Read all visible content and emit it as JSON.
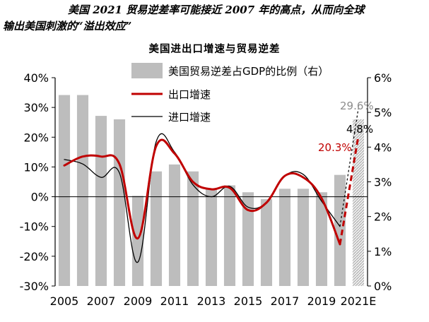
{
  "caption": {
    "line1": "美国 2021 贸易逆差率可能接近 2007 年的高点，从而向全球",
    "line2": "输出美国刺激的“溢出效应”"
  },
  "chart_data": {
    "type": "bar+line",
    "title": "美国进出口增速与贸易逆差",
    "categories": [
      "2005",
      "2006",
      "2007",
      "2008",
      "2009",
      "2010",
      "2011",
      "2012",
      "2013",
      "2014",
      "2015",
      "2016",
      "2017",
      "2018",
      "2019",
      "2020",
      "2021E"
    ],
    "x_tick_labels": [
      "2005",
      "2007",
      "2009",
      "2011",
      "2013",
      "2015",
      "2017",
      "2019",
      "2021E"
    ],
    "y_left": {
      "min": -30,
      "max": 40,
      "step": 10,
      "tick_labels": [
        "-30%",
        "-20%",
        "-10%",
        "0%",
        "10%",
        "20%",
        "30%",
        "40%"
      ]
    },
    "y_right": {
      "min": 0,
      "max": 6,
      "step": 1,
      "tick_labels": [
        "0%",
        "1%",
        "2%",
        "3%",
        "4%",
        "5%",
        "6%"
      ]
    },
    "legend": [
      {
        "label": "美国贸易逆差占GDP的比例（右）",
        "kind": "bar",
        "color": "#bdbdbd"
      },
      {
        "label": "出口增速",
        "kind": "line",
        "color": "#c00000"
      },
      {
        "label": "进口增速",
        "kind": "line",
        "color": "#000000"
      }
    ],
    "series": [
      {
        "name": "美国贸易逆差占GDP的比例（右）",
        "axis": "right",
        "type": "bar",
        "values": [
          5.5,
          5.5,
          4.9,
          4.8,
          2.6,
          3.3,
          3.5,
          3.3,
          2.8,
          2.9,
          2.7,
          2.5,
          2.8,
          2.8,
          2.7,
          3.2,
          4.8
        ]
      },
      {
        "name": "出口增速",
        "axis": "left",
        "type": "line",
        "color": "#c00000",
        "values": [
          10.5,
          13.5,
          13.5,
          11.0,
          -14.0,
          17.0,
          14.5,
          5.0,
          2.5,
          3.0,
          -4.5,
          -2.0,
          7.0,
          6.5,
          -0.5,
          -16.0,
          20.3
        ]
      },
      {
        "name": "进口增速",
        "axis": "left",
        "type": "line",
        "color": "#000000",
        "values": [
          12.5,
          11.0,
          6.5,
          8.0,
          -22.0,
          18.5,
          15.0,
          4.0,
          0.0,
          3.5,
          -3.5,
          -2.0,
          7.0,
          7.5,
          -1.5,
          -10.0,
          29.6
        ]
      }
    ],
    "annotations": [
      {
        "text": "29.6%",
        "color": "#8c8c8c"
      },
      {
        "text": "20.3%",
        "color": "#c00000"
      },
      {
        "text": "4.8%",
        "color": "#000000"
      }
    ]
  }
}
